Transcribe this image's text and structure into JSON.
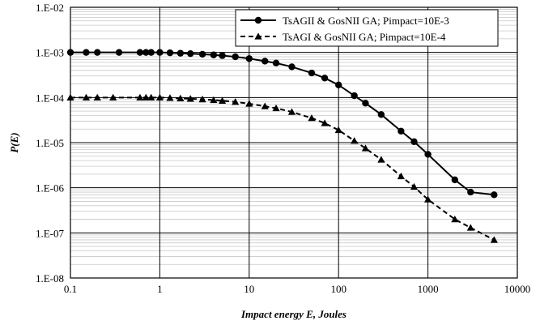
{
  "chart_data": {
    "type": "line",
    "xlabel": "Impact energy E, Joules",
    "ylabel": "P(E)",
    "x_scale": "log",
    "y_scale": "log",
    "xlim": [
      0.1,
      10000
    ],
    "ylim": [
      1e-08,
      0.01
    ],
    "x_tick_values": [
      0.1,
      1,
      10,
      100,
      1000,
      10000
    ],
    "x_tick_labels": [
      "0.1",
      "1",
      "10",
      "100",
      "1000",
      "10000"
    ],
    "y_tick_values": [
      0.01,
      0.001,
      0.0001,
      1e-05,
      1e-06,
      1e-07,
      1e-08
    ],
    "y_tick_labels": [
      "1.E-02",
      "1.E-03",
      "1.E-04",
      "1.E-05",
      "1.E-06",
      "1.E-07",
      "1.E-08"
    ],
    "grid": true,
    "legend_position": "top-right",
    "series": [
      {
        "name": "TsAGII & GosNII GA; Pimpact=10E-3",
        "marker": "circle",
        "line_style": "solid",
        "color": "#000000",
        "x": [
          0.1,
          0.15,
          0.2,
          0.35,
          0.6,
          0.7,
          0.8,
          1.0,
          1.3,
          1.7,
          2.2,
          3,
          4,
          5,
          7,
          10,
          15,
          20,
          30,
          50,
          70,
          100,
          150,
          200,
          300,
          500,
          700,
          1000,
          2000,
          3000,
          5500
        ],
        "y": [
          0.001,
          0.001,
          0.001,
          0.001,
          0.001,
          0.001,
          0.001,
          0.001,
          0.00098,
          0.00096,
          0.00094,
          0.00091,
          0.00088,
          0.00085,
          0.0008,
          0.00073,
          0.00064,
          0.00058,
          0.00048,
          0.00035,
          0.00027,
          0.00019,
          0.00011,
          7.5e-05,
          4.2e-05,
          1.8e-05,
          1.05e-05,
          5.5e-06,
          1.5e-06,
          8e-07,
          7e-07
        ]
      },
      {
        "name": "TsAGI & GosNII GA; Pimpact=10E-4",
        "marker": "triangle",
        "line_style": "dashed",
        "color": "#000000",
        "x": [
          0.1,
          0.15,
          0.2,
          0.3,
          0.6,
          0.7,
          0.8,
          1.0,
          1.3,
          1.7,
          2.2,
          3,
          4,
          5,
          7,
          10,
          15,
          20,
          30,
          50,
          70,
          100,
          150,
          200,
          300,
          500,
          700,
          1000,
          2000,
          3000,
          5500
        ],
        "y": [
          0.0001,
          0.0001,
          0.0001,
          0.0001,
          0.0001,
          0.0001,
          0.0001,
          0.0001,
          9.8e-05,
          9.6e-05,
          9.4e-05,
          9.1e-05,
          8.8e-05,
          8.5e-05,
          8e-05,
          7.3e-05,
          6.4e-05,
          5.8e-05,
          4.8e-05,
          3.5e-05,
          2.7e-05,
          1.9e-05,
          1.1e-05,
          7.5e-06,
          4.2e-06,
          1.8e-06,
          1.05e-06,
          5.5e-07,
          2e-07,
          1.3e-07,
          7e-08
        ]
      }
    ]
  }
}
